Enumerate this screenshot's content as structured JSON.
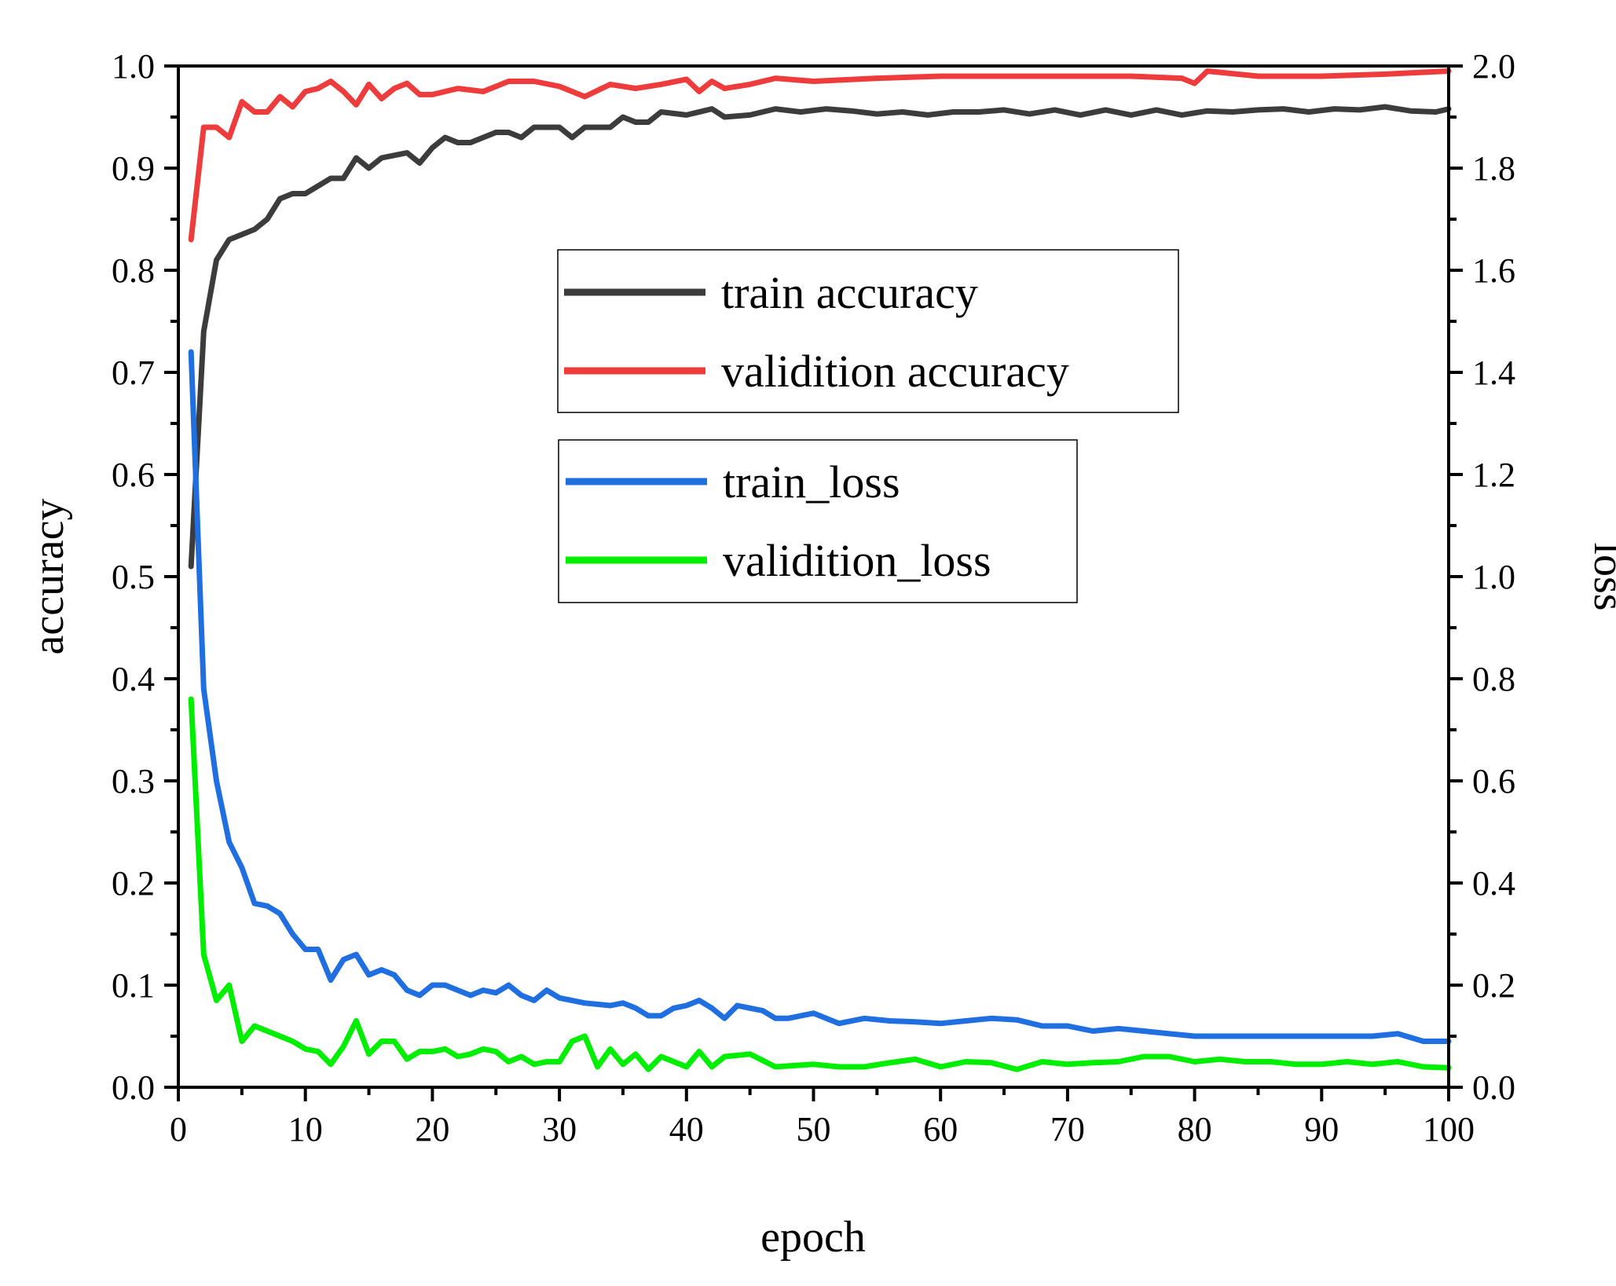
{
  "chart_data": {
    "type": "line",
    "title": "",
    "xlabel": "epoch",
    "ylabel_left": "accuracy",
    "ylabel_right": "loss",
    "xlim": [
      0,
      100
    ],
    "ylim_left": [
      0.0,
      1.0
    ],
    "ylim_right": [
      0.0,
      2.0
    ],
    "x_ticks": [
      "0",
      "10",
      "20",
      "30",
      "40",
      "50",
      "60",
      "70",
      "80",
      "90",
      "100"
    ],
    "y_ticks_left": [
      "0.0",
      "0.1",
      "0.2",
      "0.3",
      "0.4",
      "0.5",
      "0.6",
      "0.7",
      "0.8",
      "0.9",
      "1.0"
    ],
    "y_ticks_right": [
      "0.0",
      "0.2",
      "0.4",
      "0.6",
      "0.8",
      "1.0",
      "1.2",
      "1.4",
      "1.6",
      "1.8",
      "2.0"
    ],
    "grid": false,
    "legends": [
      {
        "placement": "upper-center",
        "entries": [
          0,
          1
        ]
      },
      {
        "placement": "center",
        "entries": [
          2,
          3
        ]
      }
    ],
    "series": [
      {
        "name": "train accuracy",
        "axis": "left",
        "color": "#3c3c3c",
        "x": [
          1,
          2,
          3,
          4,
          5,
          6,
          7,
          8,
          9,
          10,
          12,
          13,
          14,
          15,
          16,
          18,
          19,
          20,
          21,
          22,
          23,
          24,
          25,
          26,
          27,
          28,
          29,
          30,
          31,
          32,
          33,
          34,
          35,
          36,
          37,
          38,
          40,
          42,
          43,
          45,
          47,
          49,
          51,
          53,
          55,
          57,
          59,
          61,
          63,
          65,
          67,
          69,
          71,
          73,
          75,
          77,
          79,
          81,
          83,
          85,
          87,
          89,
          91,
          93,
          95,
          97,
          99,
          100
        ],
        "values": [
          0.51,
          0.74,
          0.81,
          0.83,
          0.835,
          0.84,
          0.85,
          0.87,
          0.875,
          0.875,
          0.89,
          0.89,
          0.91,
          0.9,
          0.91,
          0.915,
          0.905,
          0.92,
          0.93,
          0.925,
          0.925,
          0.93,
          0.935,
          0.935,
          0.93,
          0.94,
          0.94,
          0.94,
          0.93,
          0.94,
          0.94,
          0.94,
          0.95,
          0.945,
          0.945,
          0.955,
          0.952,
          0.958,
          0.95,
          0.952,
          0.958,
          0.955,
          0.958,
          0.956,
          0.953,
          0.955,
          0.952,
          0.955,
          0.955,
          0.957,
          0.953,
          0.957,
          0.952,
          0.957,
          0.952,
          0.957,
          0.952,
          0.956,
          0.955,
          0.957,
          0.958,
          0.955,
          0.958,
          0.957,
          0.96,
          0.956,
          0.955,
          0.958
        ]
      },
      {
        "name": "validition accuracy",
        "axis": "left",
        "color": "#ee3b3b",
        "x": [
          1,
          2,
          3,
          4,
          5,
          6,
          7,
          8,
          9,
          10,
          11,
          12,
          13,
          14,
          15,
          16,
          17,
          18,
          19,
          20,
          22,
          24,
          26,
          28,
          30,
          32,
          34,
          36,
          38,
          40,
          41,
          42,
          43,
          45,
          47,
          50,
          55,
          60,
          65,
          70,
          75,
          79,
          80,
          81,
          85,
          90,
          95,
          100
        ],
        "values": [
          0.83,
          0.94,
          0.94,
          0.93,
          0.965,
          0.955,
          0.955,
          0.97,
          0.96,
          0.975,
          0.978,
          0.985,
          0.975,
          0.962,
          0.982,
          0.968,
          0.978,
          0.983,
          0.972,
          0.972,
          0.978,
          0.975,
          0.985,
          0.985,
          0.98,
          0.97,
          0.982,
          0.978,
          0.982,
          0.987,
          0.975,
          0.985,
          0.978,
          0.982,
          0.988,
          0.985,
          0.988,
          0.99,
          0.99,
          0.99,
          0.99,
          0.988,
          0.983,
          0.995,
          0.99,
          0.99,
          0.992,
          0.995
        ]
      },
      {
        "name": "train_loss",
        "axis": "right",
        "color": "#1f6fe0",
        "x": [
          1,
          2,
          3,
          4,
          5,
          6,
          7,
          8,
          9,
          10,
          11,
          12,
          13,
          14,
          15,
          16,
          17,
          18,
          19,
          20,
          21,
          22,
          23,
          24,
          25,
          26,
          27,
          28,
          29,
          30,
          32,
          34,
          35,
          36,
          37,
          38,
          39,
          40,
          41,
          42,
          43,
          44,
          45,
          46,
          47,
          48,
          50,
          52,
          54,
          56,
          58,
          60,
          62,
          64,
          66,
          68,
          70,
          72,
          74,
          76,
          78,
          80,
          82,
          84,
          86,
          88,
          90,
          92,
          94,
          96,
          98,
          100
        ],
        "values": [
          1.44,
          0.78,
          0.6,
          0.48,
          0.43,
          0.36,
          0.355,
          0.34,
          0.3,
          0.27,
          0.27,
          0.21,
          0.25,
          0.26,
          0.22,
          0.23,
          0.22,
          0.19,
          0.18,
          0.2,
          0.2,
          0.19,
          0.18,
          0.19,
          0.185,
          0.2,
          0.18,
          0.17,
          0.19,
          0.175,
          0.165,
          0.16,
          0.165,
          0.155,
          0.14,
          0.14,
          0.155,
          0.16,
          0.17,
          0.155,
          0.135,
          0.16,
          0.155,
          0.15,
          0.135,
          0.135,
          0.145,
          0.125,
          0.135,
          0.13,
          0.128,
          0.125,
          0.13,
          0.135,
          0.132,
          0.12,
          0.12,
          0.11,
          0.115,
          0.11,
          0.105,
          0.1,
          0.1,
          0.1,
          0.1,
          0.1,
          0.1,
          0.1,
          0.1,
          0.105,
          0.09,
          0.09
        ]
      },
      {
        "name": "validition_loss",
        "axis": "right",
        "color": "#00ee00",
        "x": [
          1,
          2,
          3,
          4,
          5,
          6,
          7,
          8,
          9,
          10,
          11,
          12,
          13,
          14,
          15,
          16,
          17,
          18,
          19,
          20,
          21,
          22,
          23,
          24,
          25,
          26,
          27,
          28,
          29,
          30,
          31,
          32,
          33,
          34,
          35,
          36,
          37,
          38,
          39,
          40,
          41,
          42,
          43,
          45,
          47,
          50,
          52,
          54,
          56,
          58,
          60,
          62,
          64,
          66,
          68,
          70,
          72,
          74,
          76,
          78,
          80,
          82,
          84,
          86,
          88,
          90,
          92,
          94,
          96,
          98,
          100
        ],
        "values": [
          0.76,
          0.26,
          0.17,
          0.2,
          0.09,
          0.12,
          0.11,
          0.1,
          0.09,
          0.075,
          0.07,
          0.045,
          0.08,
          0.13,
          0.065,
          0.09,
          0.09,
          0.055,
          0.07,
          0.07,
          0.075,
          0.06,
          0.065,
          0.075,
          0.07,
          0.05,
          0.06,
          0.045,
          0.05,
          0.05,
          0.09,
          0.1,
          0.04,
          0.075,
          0.045,
          0.065,
          0.035,
          0.06,
          0.05,
          0.04,
          0.07,
          0.04,
          0.06,
          0.065,
          0.04,
          0.045,
          0.04,
          0.04,
          0.048,
          0.055,
          0.04,
          0.05,
          0.048,
          0.035,
          0.05,
          0.045,
          0.048,
          0.05,
          0.06,
          0.06,
          0.05,
          0.055,
          0.05,
          0.05,
          0.045,
          0.045,
          0.05,
          0.045,
          0.05,
          0.04,
          0.038
        ]
      }
    ]
  }
}
